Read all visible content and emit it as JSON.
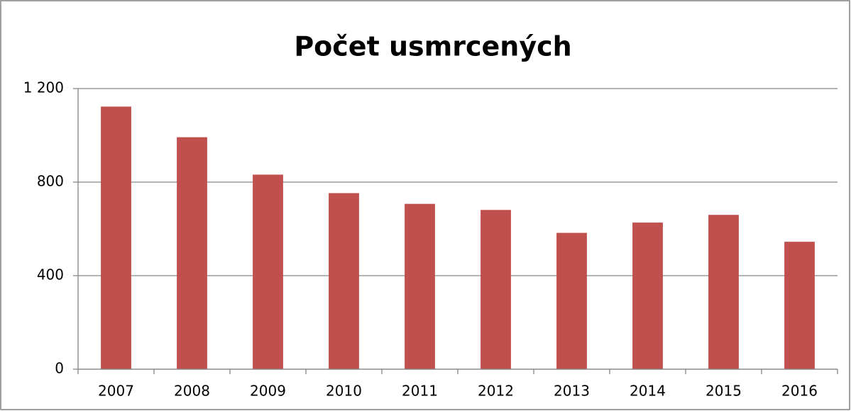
{
  "chart_data": {
    "type": "bar",
    "title": "Počet usmrcených",
    "categories": [
      "2007",
      "2008",
      "2009",
      "2010",
      "2011",
      "2012",
      "2013",
      "2014",
      "2015",
      "2016"
    ],
    "values": [
      1123,
      992,
      832,
      753,
      707,
      681,
      583,
      627,
      660,
      545
    ],
    "color": "#c0504d",
    "ylim": [
      0,
      1200
    ],
    "yticks": [
      0,
      400,
      800,
      {
        "value": 1200,
        "label": "1 200"
      }
    ],
    "grid": true
  }
}
